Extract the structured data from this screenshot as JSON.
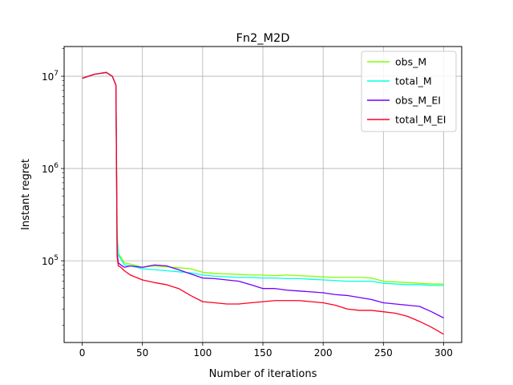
{
  "chart_data": {
    "type": "line",
    "title": "Fn2_M2D",
    "xlabel": "Number of iterations",
    "ylabel": "Instant regret",
    "yscale": "log",
    "grid": true,
    "legend_position": "top-right",
    "xlim": [
      -15,
      315
    ],
    "ylim": [
      13000,
      21000000
    ],
    "x_ticks": [
      0,
      50,
      100,
      150,
      200,
      250,
      300
    ],
    "y_ticks": [
      {
        "value": 100000,
        "label": "10^5"
      },
      {
        "value": 1000000,
        "label": "10^6"
      },
      {
        "value": 10000000,
        "label": "10^7"
      }
    ],
    "x": [
      0,
      10,
      20,
      25,
      28,
      29,
      30,
      32,
      35,
      40,
      50,
      60,
      70,
      80,
      90,
      100,
      110,
      120,
      130,
      140,
      150,
      160,
      170,
      180,
      190,
      200,
      210,
      220,
      230,
      240,
      250,
      260,
      270,
      280,
      290,
      300
    ],
    "series": [
      {
        "name": "obs_M",
        "color": "#80ff00",
        "values": [
          9500000,
          10500000,
          11000000,
          10000000,
          8000000,
          200000,
          120000,
          110000,
          95000,
          92000,
          85000,
          88000,
          86000,
          84000,
          82000,
          75000,
          73000,
          72000,
          71000,
          70000,
          70000,
          69000,
          70000,
          69000,
          68000,
          67000,
          66000,
          66000,
          66000,
          65000,
          60000,
          59000,
          58000,
          57000,
          56000,
          56000
        ]
      },
      {
        "name": "total_M",
        "color": "#00ffe6",
        "values": [
          9500000,
          10500000,
          11000000,
          10000000,
          8000000,
          180000,
          115000,
          105000,
          90000,
          88000,
          82000,
          80000,
          78000,
          76000,
          74000,
          70000,
          68000,
          67000,
          66000,
          66000,
          65000,
          65000,
          64000,
          64000,
          63000,
          62000,
          61000,
          60000,
          60000,
          60000,
          57000,
          56000,
          55000,
          55000,
          54000,
          54000
        ]
      },
      {
        "name": "obs_M_EI",
        "color": "#7000ff",
        "values": [
          9500000,
          10500000,
          11000000,
          10000000,
          8000000,
          120000,
          95000,
          90000,
          85000,
          88000,
          85000,
          90000,
          88000,
          80000,
          72000,
          65000,
          64000,
          62000,
          60000,
          55000,
          50000,
          50000,
          48000,
          47000,
          46000,
          45000,
          43000,
          42000,
          40000,
          38000,
          35000,
          34000,
          33000,
          32000,
          28000,
          24000
        ]
      },
      {
        "name": "total_M_EI",
        "color": "#ff0020",
        "values": [
          9500000,
          10500000,
          11000000,
          10000000,
          8000000,
          110000,
          88000,
          85000,
          78000,
          70000,
          62000,
          58000,
          55000,
          50000,
          42000,
          36000,
          35000,
          34000,
          34000,
          35000,
          36000,
          37000,
          37000,
          37000,
          36000,
          35000,
          33000,
          30000,
          29000,
          29000,
          28000,
          27000,
          25000,
          22000,
          19000,
          16000
        ]
      }
    ]
  }
}
